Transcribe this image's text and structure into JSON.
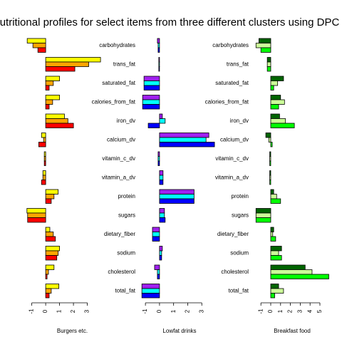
{
  "title": "utritional profiles for select items from three different clusters using DPC",
  "chart_data": [
    {
      "type": "bar",
      "orientation": "horizontal",
      "xlabel": "Burgers etc.",
      "xlim": [
        -1.75,
        4.15
      ],
      "xticks": [
        -1,
        0,
        1,
        2,
        3
      ],
      "series": [
        {
          "color": "#ffff00",
          "values": [
            -1.33,
            3.95,
            1.0,
            1.0,
            1.35,
            -0.3,
            -0.1,
            -0.2,
            0.9,
            -1.35,
            0.3,
            1.0,
            0.6,
            0.95
          ]
        },
        {
          "color": "#ffa500",
          "values": [
            -0.92,
            3.1,
            0.55,
            0.5,
            1.6,
            -0.15,
            -0.1,
            -0.2,
            0.6,
            -1.3,
            0.55,
            0.9,
            0.2,
            0.4
          ]
        },
        {
          "color": "#ff0000",
          "values": [
            -0.56,
            2.1,
            0.25,
            0.25,
            2.0,
            -0.5,
            -0.1,
            -0.3,
            0.4,
            -1.3,
            0.7,
            0.8,
            0.1,
            0.25
          ]
        }
      ]
    },
    {
      "type": "bar",
      "orientation": "horizontal",
      "xlabel": "Lowfat drinks",
      "categories": [
        "carbohydrates",
        "trans_fat",
        "saturated_fat",
        "calories_from_fat",
        "iron_dv",
        "calcium_dv",
        "vitamin_c_dv",
        "vitamin_a_dv",
        "protein",
        "sugars",
        "dietary_fiber",
        "sodium",
        "cholesterol",
        "total_fat"
      ],
      "xlim": [
        -1.46,
        4.1
      ],
      "xticks": [
        -1,
        0,
        1,
        2,
        3
      ],
      "series": [
        {
          "color": "#a020f0",
          "values": [
            -0.15,
            -0.05,
            -1.1,
            -1.2,
            0.2,
            3.5,
            -0.1,
            0.25,
            2.45,
            0.35,
            -0.5,
            0.2,
            -0.35,
            -1.25
          ]
        },
        {
          "color": "#00ffff",
          "values": [
            -0.1,
            -0.05,
            -1.1,
            -1.2,
            0.4,
            3.3,
            -0.1,
            0.25,
            2.45,
            0.35,
            -0.5,
            0.15,
            -0.15,
            -1.25
          ]
        },
        {
          "color": "#0000ff",
          "values": [
            -0.1,
            -0.05,
            -1.1,
            -1.2,
            -0.8,
            3.9,
            -0.1,
            0.25,
            2.45,
            0.4,
            -0.5,
            0.15,
            -0.15,
            -1.25
          ]
        }
      ]
    },
    {
      "type": "bar",
      "orientation": "horizontal",
      "xlabel": "Breakfast food",
      "categories": [
        "carbohydrates",
        "trans_fat",
        "saturated_fat",
        "calories_from_fat",
        "iron_dv",
        "calcium_dv",
        "vitamin_c_dv",
        "vitamin_a_dv",
        "protein",
        "sugars",
        "dietary_fiber",
        "sodium",
        "cholesterol",
        "total_fat"
      ],
      "xlim": [
        -1.81,
        6.16
      ],
      "xticks": [
        -1,
        0,
        1,
        2,
        3,
        4,
        5
      ],
      "series": [
        {
          "color": "#006400",
          "values": [
            -1.2,
            -0.35,
            1.3,
            1.0,
            0.9,
            -0.5,
            -0.1,
            -0.1,
            0.3,
            -1.5,
            0.3,
            1.1,
            3.5,
            0.8
          ]
        },
        {
          "color": "#ccff99",
          "values": [
            -1.5,
            -0.35,
            0.7,
            1.4,
            1.5,
            -0.2,
            -0.1,
            -0.1,
            0.6,
            -1.5,
            0.2,
            0.8,
            4.2,
            1.3
          ]
        },
        {
          "color": "#00ff00",
          "values": [
            -1.0,
            -0.35,
            0.3,
            0.8,
            2.4,
            0.15,
            -0.1,
            -0.1,
            1.0,
            -1.5,
            0.5,
            1.1,
            5.9,
            0.4
          ]
        }
      ]
    }
  ]
}
